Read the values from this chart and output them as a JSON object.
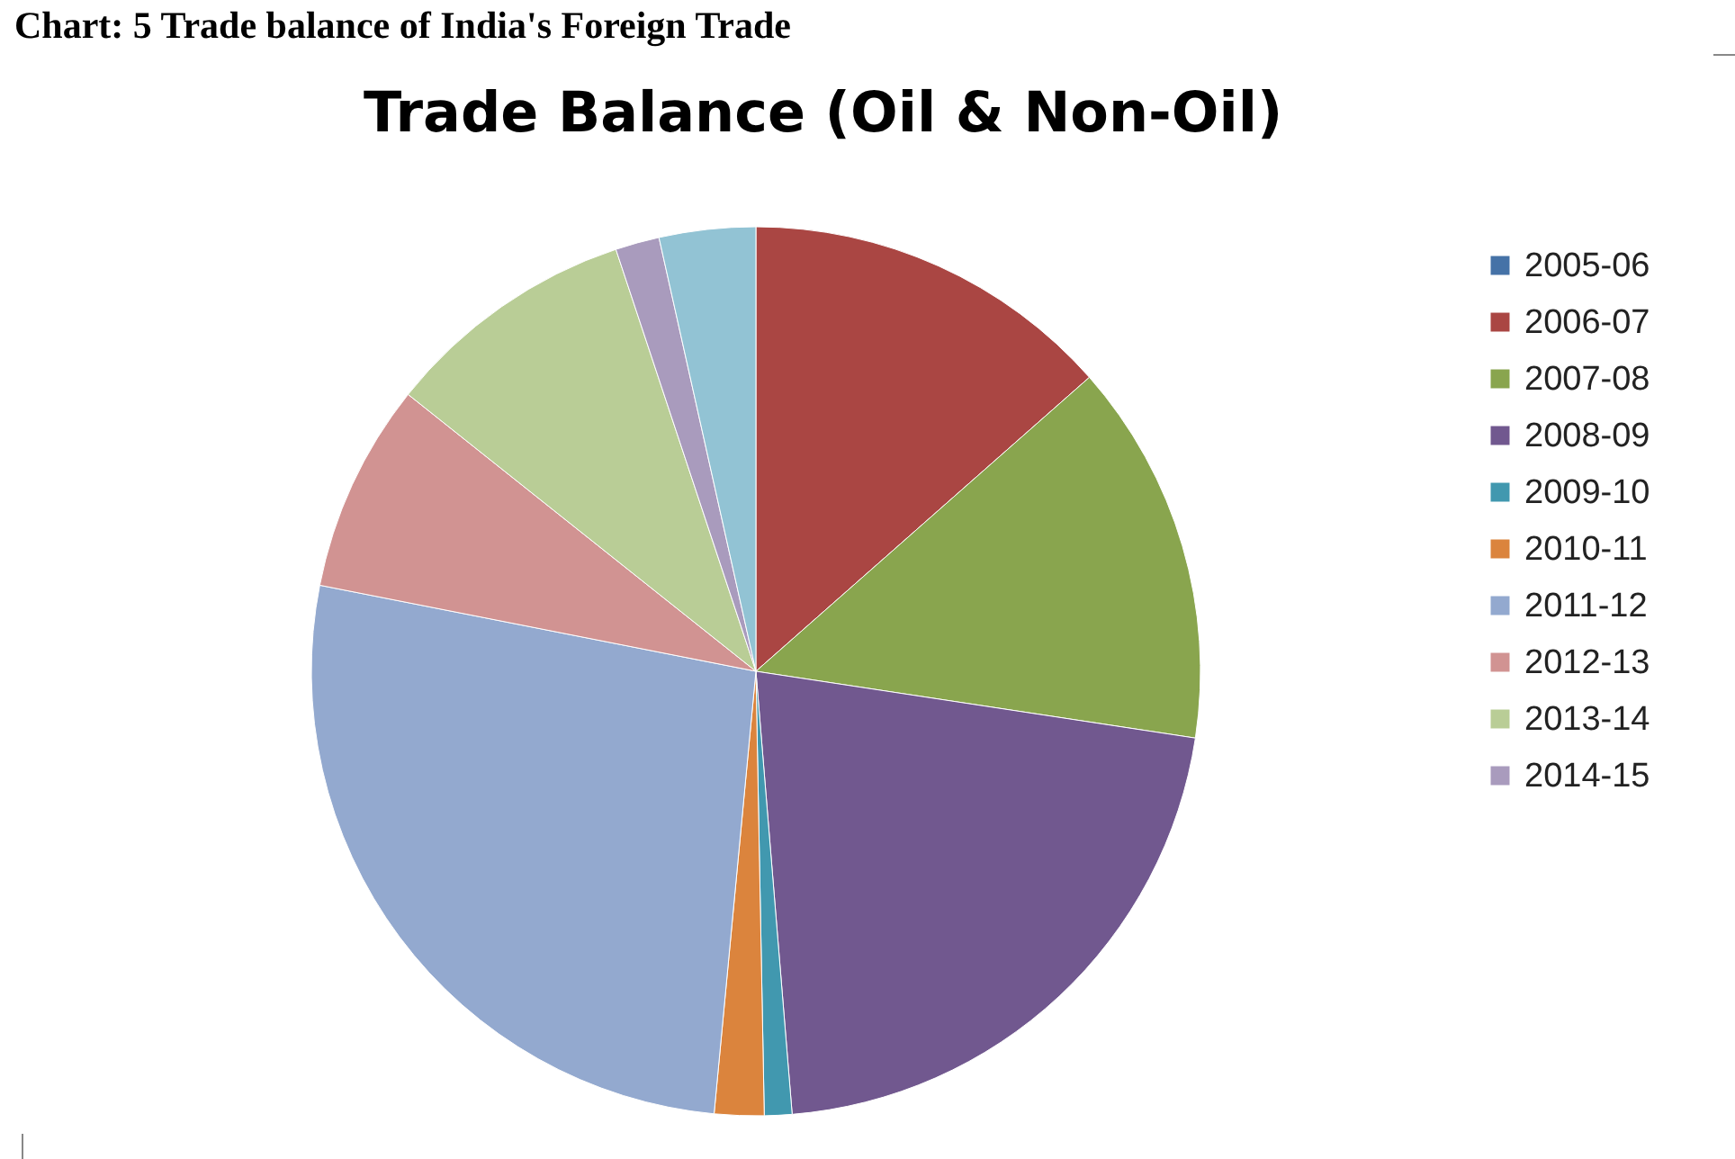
{
  "chart_data": {
    "type": "pie",
    "title": "Trade Balance (Oil & Non-Oil)",
    "annotations": [
      "Chart: 5 Trade balance of India's Foreign Trade"
    ],
    "categories": [
      "2005-06",
      "2006-07",
      "2007-08",
      "2008-09",
      "2009-10",
      "2010-11",
      "2011-12",
      "2012-13",
      "2013-14",
      "2014-15",
      null
    ],
    "values": [
      0,
      13.5,
      13.9,
      21.3,
      1.0,
      1.8,
      26.6,
      7.6,
      9.2,
      1.6,
      3.5
    ],
    "colors": [
      "#4572a7",
      "#aa4643",
      "#89a54e",
      "#71588f",
      "#4198af",
      "#db843d",
      "#93a9cf",
      "#d19392",
      "#b9cd96",
      "#a99bbd",
      "#92c3d4"
    ],
    "legend": "right"
  }
}
